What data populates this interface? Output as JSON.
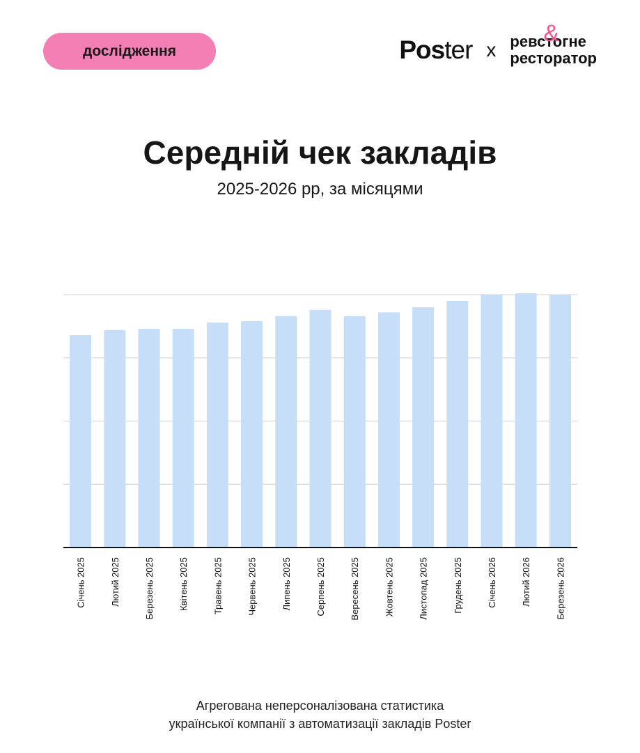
{
  "header": {
    "badge_label": "дослідження",
    "brand_logo": "Poster",
    "brand_logo_a": "Pos",
    "brand_logo_b": "ter",
    "separator": "x",
    "partner_line1": "ревстогне",
    "partner_line2": "ресторатор",
    "partner_amp": "&"
  },
  "title": "Середній чек закладів",
  "subtitle": "2025-2026 рр, за місяцями",
  "chart_data": {
    "type": "bar",
    "categories": [
      "Січень 2025",
      "Лютий 2025",
      "Березень 2025",
      "Квітень 2025",
      "Травень 2025",
      "Червень 2025",
      "Липень 2025",
      "Серпень 2025",
      "Вересень 2025",
      "Жовтень 2025",
      "Листопад 2025",
      "Грудень 2025",
      "Січень 2026",
      "Лютий 2026",
      "Березень 2026"
    ],
    "values": [
      0.84,
      0.86,
      0.865,
      0.865,
      0.89,
      0.895,
      0.915,
      0.94,
      0.915,
      0.93,
      0.95,
      0.975,
      1.0,
      1.005,
      1.0
    ],
    "ylim": [
      0,
      1.0
    ],
    "gridlines": 4,
    "y_tick_labels": false,
    "bar_color": "#c6def8",
    "grid": true,
    "xlabel": "",
    "ylabel": ""
  },
  "footer": {
    "line1": "Агрегована неперсоналізована статистика",
    "line2": "української компанії з автоматизації закладів Poster"
  }
}
